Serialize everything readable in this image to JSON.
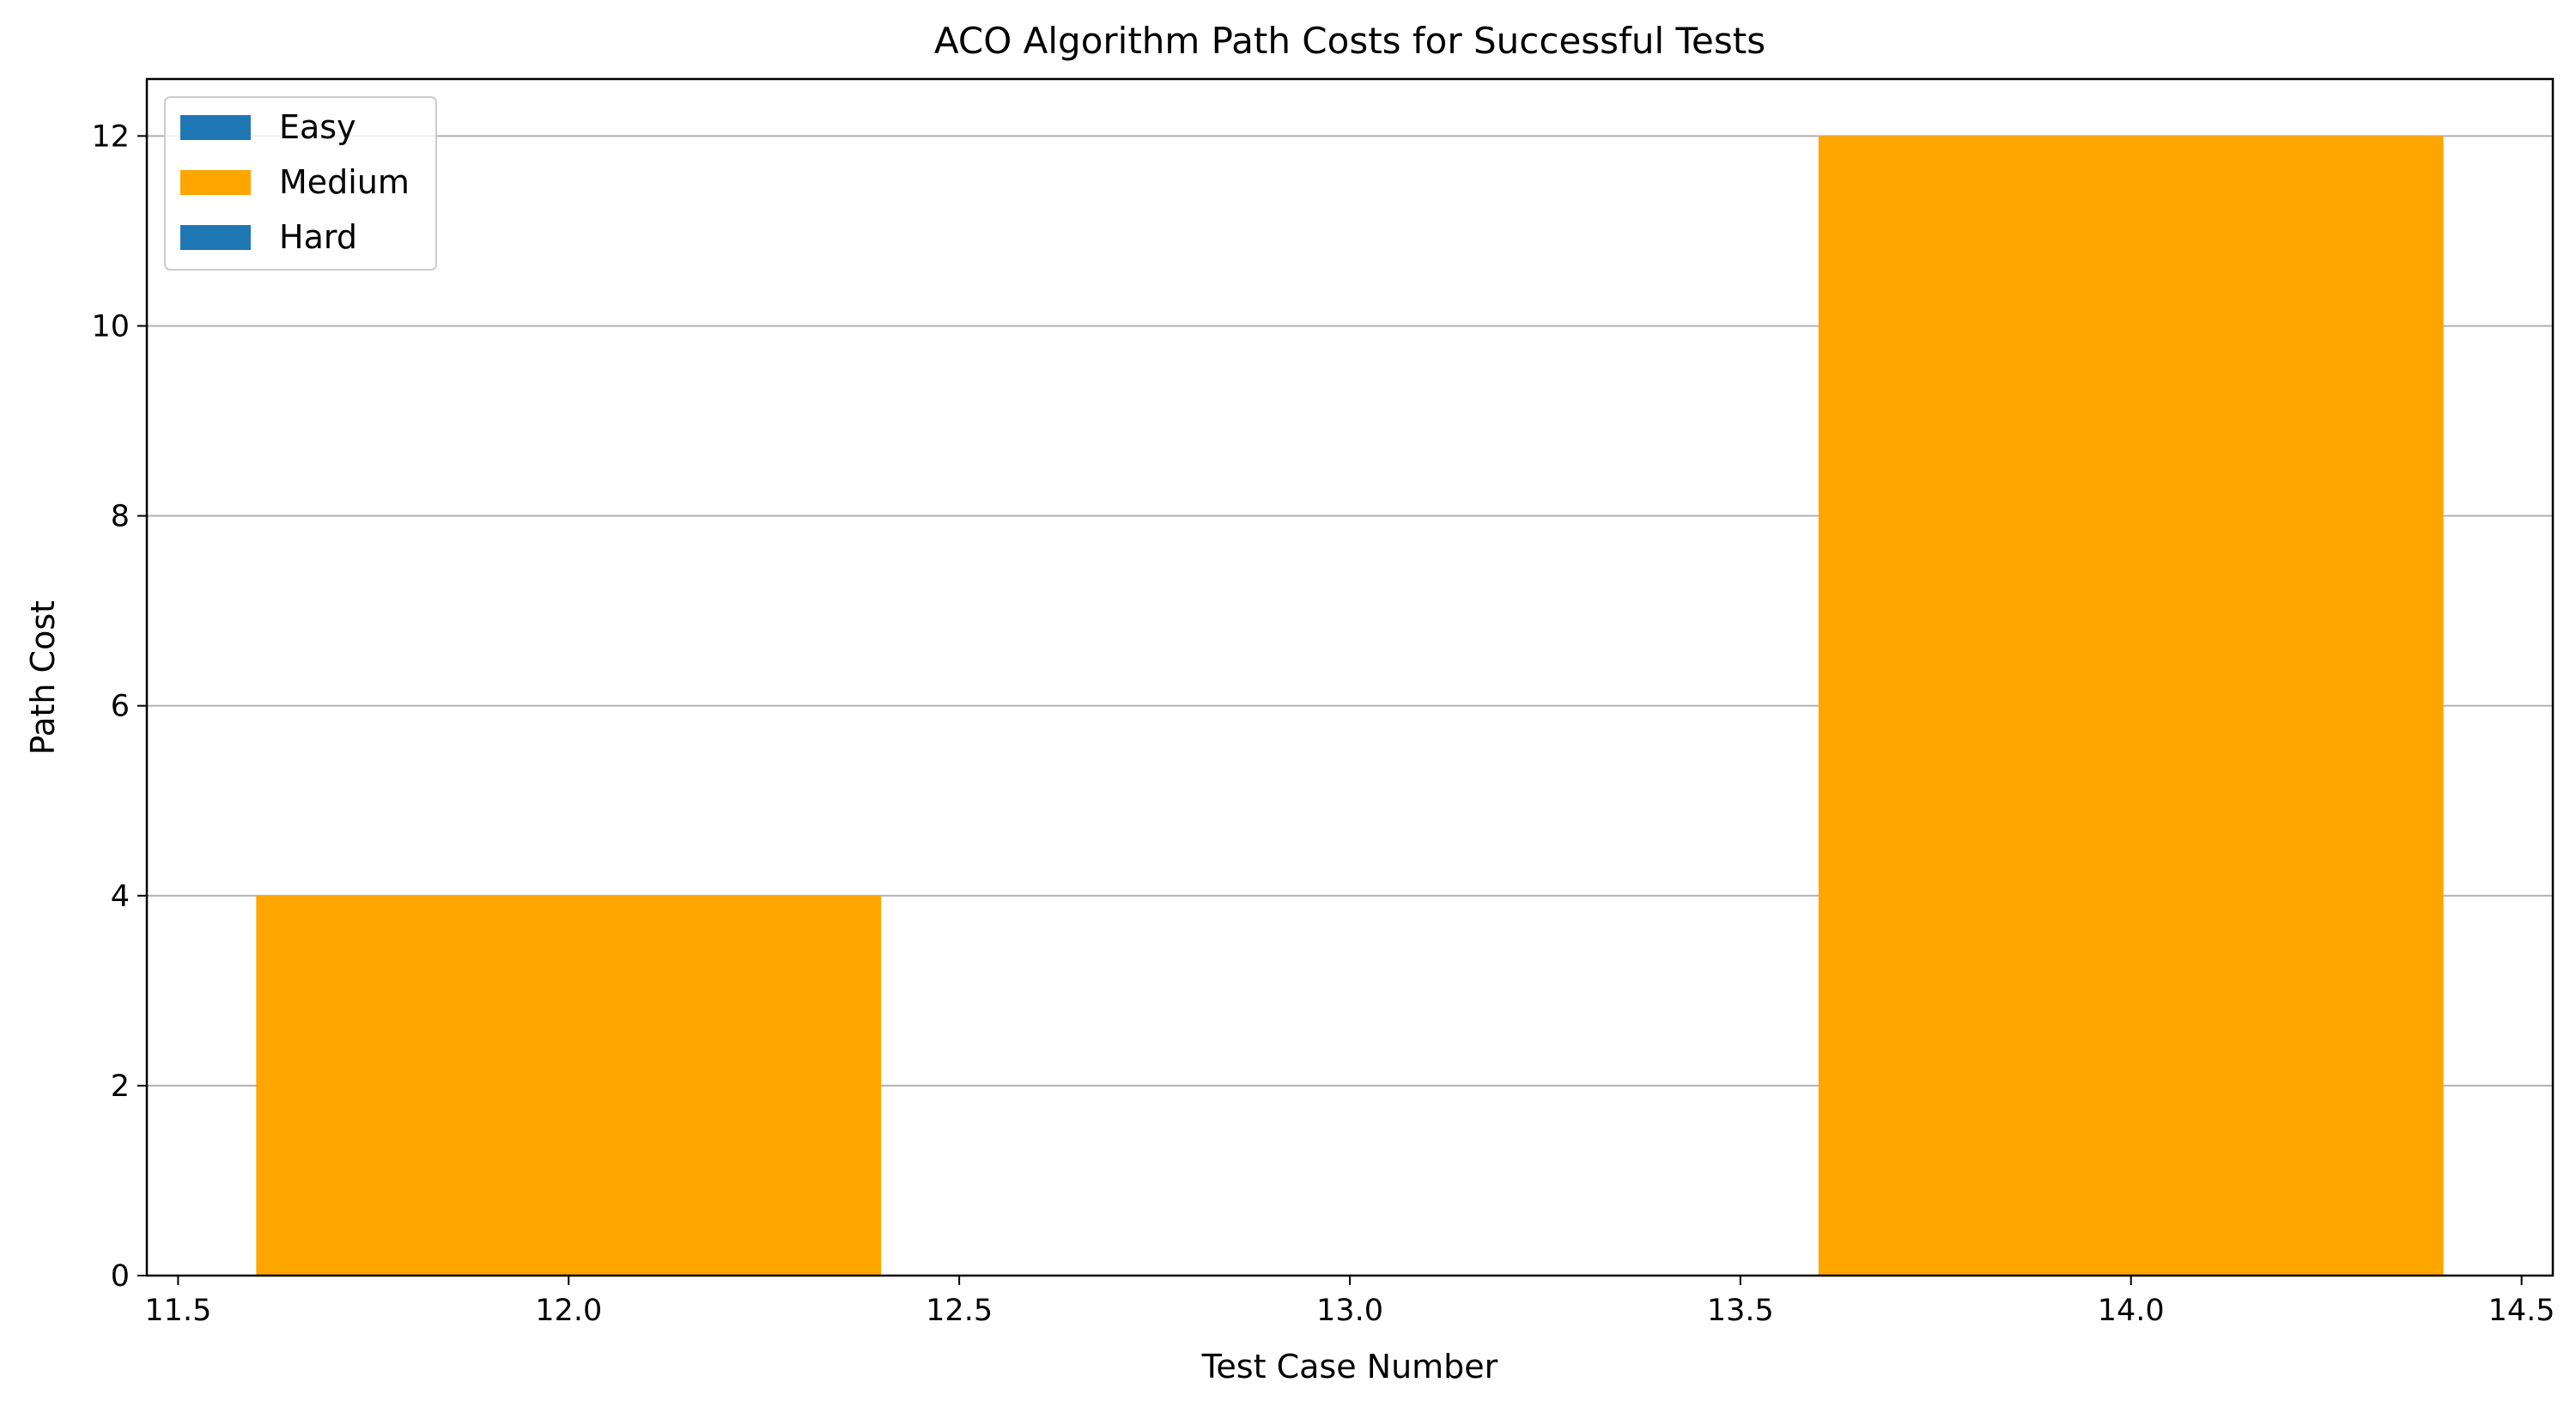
{
  "chart_data": {
    "type": "bar",
    "title": "ACO Algorithm Path Costs for Successful Tests",
    "xlabel": "Test Case Number",
    "ylabel": "Path Cost",
    "xlim": [
      11.46,
      14.54
    ],
    "ylim": [
      0,
      12.6
    ],
    "xticks": [
      "11.5",
      "12.0",
      "12.5",
      "13.0",
      "13.5",
      "14.0",
      "14.5"
    ],
    "xtick_values": [
      11.5,
      12.0,
      12.5,
      13.0,
      13.5,
      14.0,
      14.5
    ],
    "yticks": [
      "0",
      "2",
      "4",
      "6",
      "8",
      "10",
      "12"
    ],
    "ytick_values": [
      0,
      2,
      4,
      6,
      8,
      10,
      12
    ],
    "bar_width": 0.8,
    "grid": "y",
    "legend_position": "upper left",
    "series": [
      {
        "name": "Easy",
        "color": "#1f77b4",
        "x": [],
        "values": []
      },
      {
        "name": "Medium",
        "color": "#ffa500",
        "x": [
          12,
          14
        ],
        "values": [
          4,
          12
        ]
      },
      {
        "name": "Hard",
        "color": "#1f77b4",
        "x": [],
        "values": []
      }
    ]
  }
}
